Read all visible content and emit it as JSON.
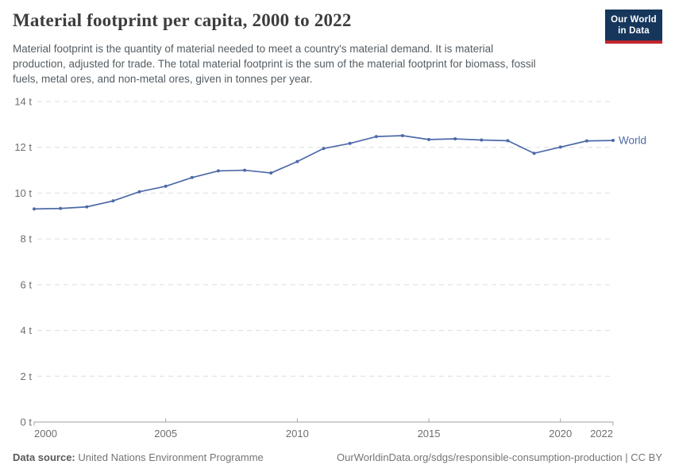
{
  "header": {
    "title": "Material footprint per capita, 2000 to 2022",
    "subtitle_lines": [
      "Material footprint is the quantity of material needed to meet a country's material demand. It is material",
      "production, adjusted for trade. The total material footprint is the sum of the material footprint for biomass, fossil",
      "fuels, metal ores, and non-metal ores, given in tonnes per year."
    ],
    "logo_line1": "Our World",
    "logo_line2": "in Data"
  },
  "chart_data": {
    "type": "line",
    "title": "Material footprint per capita, 2000 to 2022",
    "unit": "tonnes per year",
    "x": [
      2000,
      2001,
      2002,
      2003,
      2004,
      2005,
      2006,
      2007,
      2008,
      2009,
      2010,
      2011,
      2012,
      2013,
      2014,
      2015,
      2016,
      2017,
      2018,
      2019,
      2020,
      2021,
      2022
    ],
    "series": [
      {
        "name": "World",
        "values": [
          9.31,
          9.33,
          9.4,
          9.66,
          10.06,
          10.3,
          10.68,
          10.97,
          11.0,
          10.88,
          11.38,
          11.95,
          12.17,
          12.47,
          12.51,
          12.34,
          12.37,
          12.32,
          12.29,
          11.74,
          12.01,
          12.28,
          12.3
        ]
      }
    ],
    "ylim": [
      0,
      14
    ],
    "y_ticks": [
      0,
      2,
      4,
      6,
      8,
      10,
      12,
      14
    ],
    "y_tick_suffix": " t",
    "x_ticks": [
      2000,
      2005,
      2010,
      2015,
      2020,
      2022
    ],
    "grid": "horizontal-dashed",
    "legend": "end-of-line-label",
    "end_label": "World"
  },
  "footer": {
    "source_label": "Data source:",
    "source_value": "United Nations Environment Programme",
    "citation": "OurWorldinData.org/sdgs/responsible-consumption-production | CC BY"
  },
  "colors": {
    "line": "#4d6aa8",
    "logo_bg": "#16365c",
    "logo_stripe": "#c0262d",
    "grid": "#dddddd",
    "axis": "#a2a2a2",
    "tick_text": "#6e6e6e",
    "title_text": "#3d3d3d",
    "subtitle_text": "#555d63",
    "footer_text": "#757575"
  }
}
